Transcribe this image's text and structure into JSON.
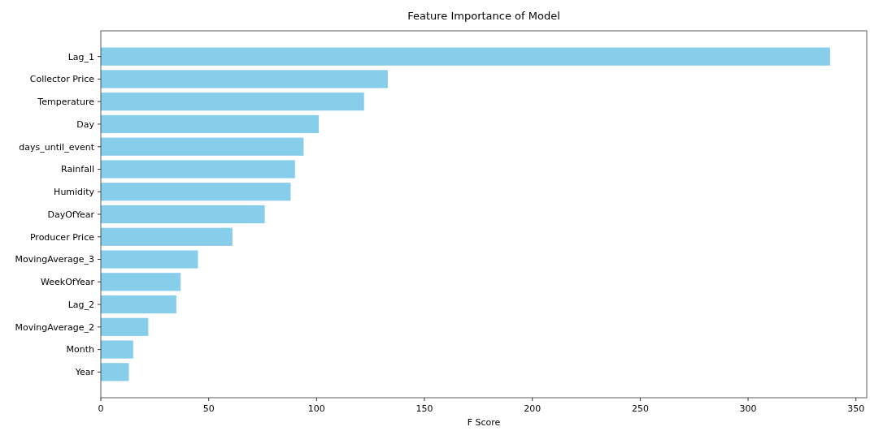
{
  "chart_data": {
    "type": "bar",
    "orientation": "horizontal",
    "title": "Feature Importance of Model",
    "xlabel": "F Score",
    "categories": [
      "Lag_1",
      "Collector Price",
      "Temperature",
      "Day",
      "days_until_event",
      "Rainfall",
      "Humidity",
      "DayOfYear",
      "Producer Price",
      "MovingAverage_3",
      "WeekOfYear",
      "Lag_2",
      "MovingAverage_2",
      "Month",
      "Year"
    ],
    "values": [
      338,
      133,
      122,
      101,
      94,
      90,
      88,
      76,
      61,
      45,
      37,
      35,
      22,
      15,
      13
    ],
    "color": "#87ceeb",
    "xlim": [
      0,
      355
    ],
    "xticks": [
      0,
      50,
      100,
      150,
      200,
      250,
      300,
      350
    ],
    "grid": false
  }
}
